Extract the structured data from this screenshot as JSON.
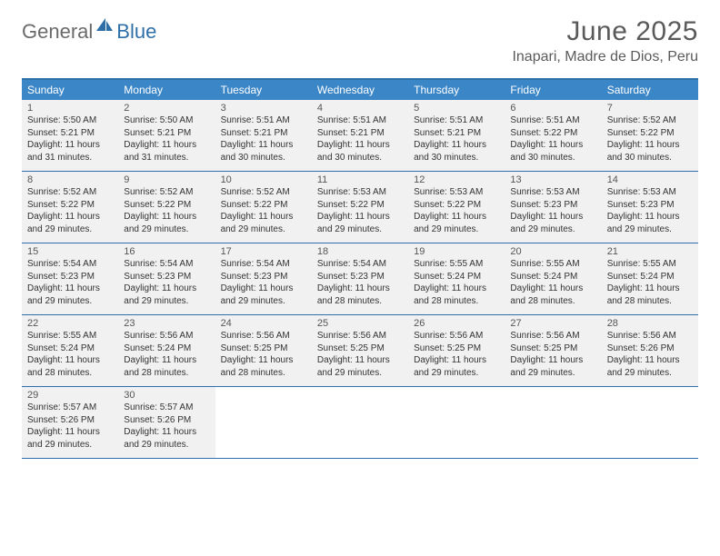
{
  "brand": {
    "text_general": "General",
    "text_blue": "Blue",
    "icon_name": "logo-sail-icon",
    "icon_color": "#2f6fa7"
  },
  "header": {
    "month_title": "June 2025",
    "location": "Inapari, Madre de Dios, Peru"
  },
  "colors": {
    "header_bar": "#3b86c7",
    "border_line": "#2f6fa7",
    "cell_bg": "#f1f1f1",
    "text_primary": "#333333",
    "text_muted": "#5a5a5a",
    "background": "#ffffff"
  },
  "day_names": [
    "Sunday",
    "Monday",
    "Tuesday",
    "Wednesday",
    "Thursday",
    "Friday",
    "Saturday"
  ],
  "weeks": [
    [
      {
        "n": "1",
        "sunrise": "Sunrise: 5:50 AM",
        "sunset": "Sunset: 5:21 PM",
        "daylight": "Daylight: 11 hours and 31 minutes."
      },
      {
        "n": "2",
        "sunrise": "Sunrise: 5:50 AM",
        "sunset": "Sunset: 5:21 PM",
        "daylight": "Daylight: 11 hours and 31 minutes."
      },
      {
        "n": "3",
        "sunrise": "Sunrise: 5:51 AM",
        "sunset": "Sunset: 5:21 PM",
        "daylight": "Daylight: 11 hours and 30 minutes."
      },
      {
        "n": "4",
        "sunrise": "Sunrise: 5:51 AM",
        "sunset": "Sunset: 5:21 PM",
        "daylight": "Daylight: 11 hours and 30 minutes."
      },
      {
        "n": "5",
        "sunrise": "Sunrise: 5:51 AM",
        "sunset": "Sunset: 5:21 PM",
        "daylight": "Daylight: 11 hours and 30 minutes."
      },
      {
        "n": "6",
        "sunrise": "Sunrise: 5:51 AM",
        "sunset": "Sunset: 5:22 PM",
        "daylight": "Daylight: 11 hours and 30 minutes."
      },
      {
        "n": "7",
        "sunrise": "Sunrise: 5:52 AM",
        "sunset": "Sunset: 5:22 PM",
        "daylight": "Daylight: 11 hours and 30 minutes."
      }
    ],
    [
      {
        "n": "8",
        "sunrise": "Sunrise: 5:52 AM",
        "sunset": "Sunset: 5:22 PM",
        "daylight": "Daylight: 11 hours and 29 minutes."
      },
      {
        "n": "9",
        "sunrise": "Sunrise: 5:52 AM",
        "sunset": "Sunset: 5:22 PM",
        "daylight": "Daylight: 11 hours and 29 minutes."
      },
      {
        "n": "10",
        "sunrise": "Sunrise: 5:52 AM",
        "sunset": "Sunset: 5:22 PM",
        "daylight": "Daylight: 11 hours and 29 minutes."
      },
      {
        "n": "11",
        "sunrise": "Sunrise: 5:53 AM",
        "sunset": "Sunset: 5:22 PM",
        "daylight": "Daylight: 11 hours and 29 minutes."
      },
      {
        "n": "12",
        "sunrise": "Sunrise: 5:53 AM",
        "sunset": "Sunset: 5:22 PM",
        "daylight": "Daylight: 11 hours and 29 minutes."
      },
      {
        "n": "13",
        "sunrise": "Sunrise: 5:53 AM",
        "sunset": "Sunset: 5:23 PM",
        "daylight": "Daylight: 11 hours and 29 minutes."
      },
      {
        "n": "14",
        "sunrise": "Sunrise: 5:53 AM",
        "sunset": "Sunset: 5:23 PM",
        "daylight": "Daylight: 11 hours and 29 minutes."
      }
    ],
    [
      {
        "n": "15",
        "sunrise": "Sunrise: 5:54 AM",
        "sunset": "Sunset: 5:23 PM",
        "daylight": "Daylight: 11 hours and 29 minutes."
      },
      {
        "n": "16",
        "sunrise": "Sunrise: 5:54 AM",
        "sunset": "Sunset: 5:23 PM",
        "daylight": "Daylight: 11 hours and 29 minutes."
      },
      {
        "n": "17",
        "sunrise": "Sunrise: 5:54 AM",
        "sunset": "Sunset: 5:23 PM",
        "daylight": "Daylight: 11 hours and 29 minutes."
      },
      {
        "n": "18",
        "sunrise": "Sunrise: 5:54 AM",
        "sunset": "Sunset: 5:23 PM",
        "daylight": "Daylight: 11 hours and 28 minutes."
      },
      {
        "n": "19",
        "sunrise": "Sunrise: 5:55 AM",
        "sunset": "Sunset: 5:24 PM",
        "daylight": "Daylight: 11 hours and 28 minutes."
      },
      {
        "n": "20",
        "sunrise": "Sunrise: 5:55 AM",
        "sunset": "Sunset: 5:24 PM",
        "daylight": "Daylight: 11 hours and 28 minutes."
      },
      {
        "n": "21",
        "sunrise": "Sunrise: 5:55 AM",
        "sunset": "Sunset: 5:24 PM",
        "daylight": "Daylight: 11 hours and 28 minutes."
      }
    ],
    [
      {
        "n": "22",
        "sunrise": "Sunrise: 5:55 AM",
        "sunset": "Sunset: 5:24 PM",
        "daylight": "Daylight: 11 hours and 28 minutes."
      },
      {
        "n": "23",
        "sunrise": "Sunrise: 5:56 AM",
        "sunset": "Sunset: 5:24 PM",
        "daylight": "Daylight: 11 hours and 28 minutes."
      },
      {
        "n": "24",
        "sunrise": "Sunrise: 5:56 AM",
        "sunset": "Sunset: 5:25 PM",
        "daylight": "Daylight: 11 hours and 28 minutes."
      },
      {
        "n": "25",
        "sunrise": "Sunrise: 5:56 AM",
        "sunset": "Sunset: 5:25 PM",
        "daylight": "Daylight: 11 hours and 29 minutes."
      },
      {
        "n": "26",
        "sunrise": "Sunrise: 5:56 AM",
        "sunset": "Sunset: 5:25 PM",
        "daylight": "Daylight: 11 hours and 29 minutes."
      },
      {
        "n": "27",
        "sunrise": "Sunrise: 5:56 AM",
        "sunset": "Sunset: 5:25 PM",
        "daylight": "Daylight: 11 hours and 29 minutes."
      },
      {
        "n": "28",
        "sunrise": "Sunrise: 5:56 AM",
        "sunset": "Sunset: 5:26 PM",
        "daylight": "Daylight: 11 hours and 29 minutes."
      }
    ],
    [
      {
        "n": "29",
        "sunrise": "Sunrise: 5:57 AM",
        "sunset": "Sunset: 5:26 PM",
        "daylight": "Daylight: 11 hours and 29 minutes."
      },
      {
        "n": "30",
        "sunrise": "Sunrise: 5:57 AM",
        "sunset": "Sunset: 5:26 PM",
        "daylight": "Daylight: 11 hours and 29 minutes."
      },
      null,
      null,
      null,
      null,
      null
    ]
  ]
}
